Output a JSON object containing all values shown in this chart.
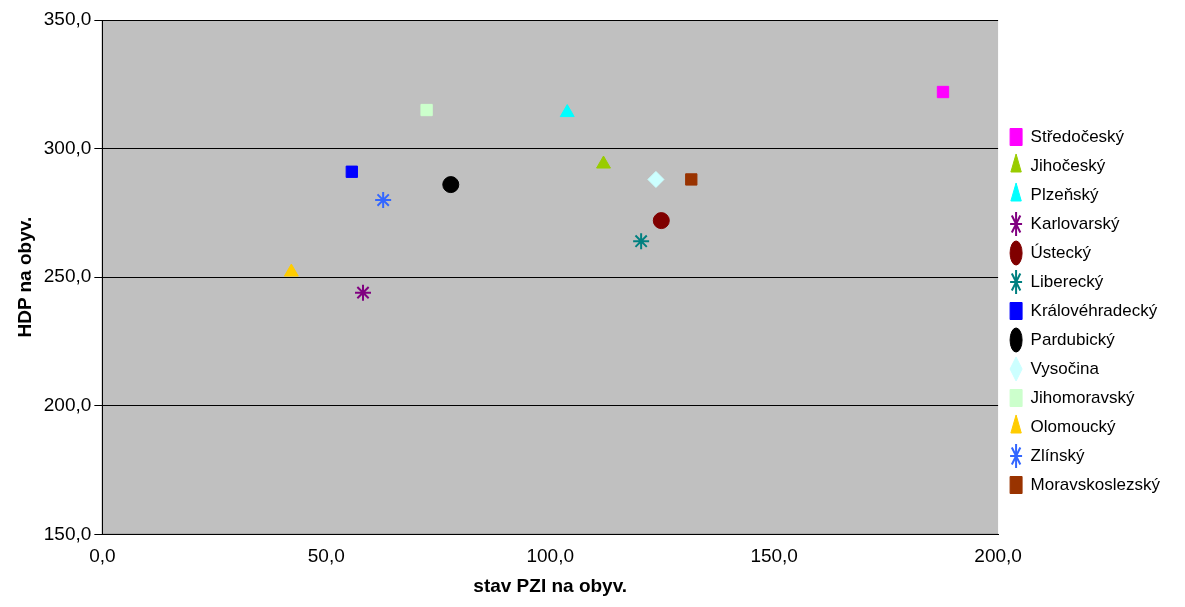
{
  "chart_data": {
    "type": "scatter",
    "xlabel": "stav PZI na obyv.",
    "ylabel": "HDP na obyv.",
    "xlim": [
      0,
      200
    ],
    "ylim": [
      150,
      350
    ],
    "xticks": [
      {
        "value": 0,
        "label": "0,0"
      },
      {
        "value": 50,
        "label": "50,0"
      },
      {
        "value": 100,
        "label": "100,0"
      },
      {
        "value": 150,
        "label": "150,0"
      },
      {
        "value": 200,
        "label": "200,0"
      }
    ],
    "yticks": [
      {
        "value": 150,
        "label": "150,0"
      },
      {
        "value": 200,
        "label": "200,0"
      },
      {
        "value": 250,
        "label": "250,0"
      },
      {
        "value": 300,
        "label": "300,0"
      },
      {
        "value": 350,
        "label": "350,0"
      }
    ],
    "grid": "y",
    "legend": "right",
    "series": [
      {
        "name": "Středočeský",
        "color": "#ff00ff",
        "marker": "square",
        "x": [
          187.7
        ],
        "values": [
          322
        ]
      },
      {
        "name": "Jihočeský",
        "color": "#99cc00",
        "marker": "triangle",
        "x": [
          111.9
        ],
        "values": [
          294
        ]
      },
      {
        "name": "Plzeňský",
        "color": "#00ffff",
        "marker": "triangle",
        "x": [
          103.8
        ],
        "values": [
          314
        ]
      },
      {
        "name": "Karlovarský",
        "color": "#800080",
        "marker": "cross",
        "x": [
          58.2
        ],
        "values": [
          244
        ]
      },
      {
        "name": "Ústecký",
        "color": "#800000",
        "marker": "circle",
        "x": [
          124.8
        ],
        "values": [
          272
        ]
      },
      {
        "name": "Liberecký",
        "color": "#008080",
        "marker": "cross",
        "x": [
          120.3
        ],
        "values": [
          264
        ]
      },
      {
        "name": "Královéhradecký",
        "color": "#0000ff",
        "marker": "square",
        "x": [
          55.7
        ],
        "values": [
          291
        ]
      },
      {
        "name": "Pardubický",
        "color": "#000000",
        "marker": "circle",
        "x": [
          77.8
        ],
        "values": [
          286
        ]
      },
      {
        "name": "Vysočina",
        "color": "#ccffff",
        "marker": "diamond",
        "x": [
          123.6
        ],
        "values": [
          288
        ]
      },
      {
        "name": "Jihomoravský",
        "color": "#ccffcc",
        "marker": "square",
        "x": [
          72.4
        ],
        "values": [
          315
        ]
      },
      {
        "name": "Olomoucký",
        "color": "#ffcc00",
        "marker": "triangle",
        "x": [
          42.2
        ],
        "values": [
          252
        ]
      },
      {
        "name": "Zlínský",
        "color": "#3366ff",
        "marker": "cross",
        "x": [
          62.7
        ],
        "values": [
          280
        ]
      },
      {
        "name": "Moravskoslezský",
        "color": "#993300",
        "marker": "square",
        "x": [
          131.5
        ],
        "values": [
          288
        ]
      }
    ]
  }
}
